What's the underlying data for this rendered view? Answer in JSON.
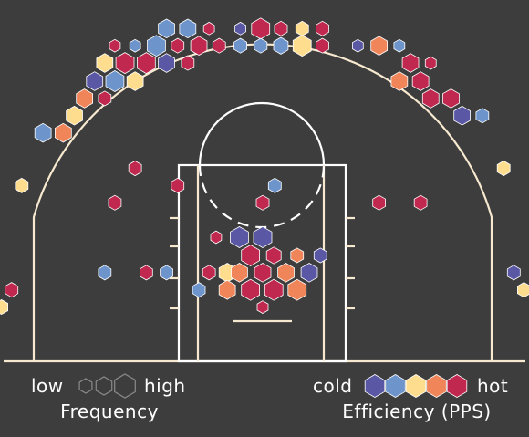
{
  "chart_data": {
    "type": "scatter",
    "subtype": "hexbin-shot-chart",
    "legend": {
      "frequency": {
        "low": "low",
        "high": "high",
        "title": "Frequency"
      },
      "efficiency": {
        "cold": "cold",
        "hot": "hot",
        "title": "Efficiency (PPS)"
      }
    },
    "color_scale": [
      "#5a58a5",
      "#6d95cc",
      "#fedd8e",
      "#f0855a",
      "#c0284f"
    ],
    "axes": {
      "x_range": [
        -25,
        25
      ],
      "y_range": [
        -4,
        30
      ],
      "units": "ft",
      "grid": false
    },
    "shots": [
      {
        "x": -9.5,
        "y": 28.8,
        "f": 0.9,
        "c": 1
      },
      {
        "x": -7.4,
        "y": 28.8,
        "f": 0.9,
        "c": 1
      },
      {
        "x": -5.3,
        "y": 28.8,
        "f": 0.6,
        "c": 4
      },
      {
        "x": -2.2,
        "y": 28.8,
        "f": 0.6,
        "c": 0
      },
      {
        "x": -0.2,
        "y": 28.8,
        "f": 1.0,
        "c": 4
      },
      {
        "x": 1.8,
        "y": 28.8,
        "f": 0.7,
        "c": 4
      },
      {
        "x": 3.9,
        "y": 28.8,
        "f": 0.7,
        "c": 2
      },
      {
        "x": 5.9,
        "y": 28.8,
        "f": 0.7,
        "c": 4
      },
      {
        "x": -14.6,
        "y": 27.1,
        "f": 0.6,
        "c": 4
      },
      {
        "x": -12.6,
        "y": 27.1,
        "f": 0.6,
        "c": 1
      },
      {
        "x": -10.5,
        "y": 27.1,
        "f": 1.0,
        "c": 1
      },
      {
        "x": -8.4,
        "y": 27.1,
        "f": 0.7,
        "c": 4
      },
      {
        "x": -6.3,
        "y": 27.1,
        "f": 0.9,
        "c": 4
      },
      {
        "x": -4.3,
        "y": 27.1,
        "f": 0.7,
        "c": 4
      },
      {
        "x": -2.2,
        "y": 27.1,
        "f": 0.7,
        "c": 1
      },
      {
        "x": -0.2,
        "y": 27.1,
        "f": 0.7,
        "c": 1
      },
      {
        "x": 1.8,
        "y": 27.1,
        "f": 0.8,
        "c": 1
      },
      {
        "x": 3.9,
        "y": 27.1,
        "f": 1.0,
        "c": 2
      },
      {
        "x": 5.9,
        "y": 27.1,
        "f": 0.7,
        "c": 4
      },
      {
        "x": 9.4,
        "y": 27.1,
        "f": 0.6,
        "c": 0
      },
      {
        "x": 11.5,
        "y": 27.1,
        "f": 0.9,
        "c": 3
      },
      {
        "x": 13.5,
        "y": 27.1,
        "f": 0.6,
        "c": 1
      },
      {
        "x": -15.6,
        "y": 25.4,
        "f": 0.9,
        "c": 2
      },
      {
        "x": -13.6,
        "y": 25.4,
        "f": 1.0,
        "c": 4
      },
      {
        "x": -11.5,
        "y": 25.4,
        "f": 1.0,
        "c": 4
      },
      {
        "x": -9.5,
        "y": 25.4,
        "f": 0.9,
        "c": 0
      },
      {
        "x": -7.4,
        "y": 25.4,
        "f": 0.7,
        "c": 4
      },
      {
        "x": 14.6,
        "y": 25.4,
        "f": 0.9,
        "c": 4
      },
      {
        "x": 16.6,
        "y": 25.4,
        "f": 0.6,
        "c": 4
      },
      {
        "x": -16.6,
        "y": 23.6,
        "f": 0.9,
        "c": 0
      },
      {
        "x": -14.6,
        "y": 23.6,
        "f": 1.0,
        "c": 1
      },
      {
        "x": -12.6,
        "y": 23.6,
        "f": 0.9,
        "c": 2
      },
      {
        "x": 13.5,
        "y": 23.6,
        "f": 0.9,
        "c": 3
      },
      {
        "x": 15.6,
        "y": 23.6,
        "f": 0.9,
        "c": 4
      },
      {
        "x": -17.6,
        "y": 21.9,
        "f": 0.9,
        "c": 3
      },
      {
        "x": -15.6,
        "y": 21.9,
        "f": 0.7,
        "c": 4
      },
      {
        "x": 16.6,
        "y": 21.9,
        "f": 0.9,
        "c": 4
      },
      {
        "x": 18.6,
        "y": 21.9,
        "f": 0.9,
        "c": 4
      },
      {
        "x": -18.6,
        "y": 20.2,
        "f": 0.9,
        "c": 2
      },
      {
        "x": 19.7,
        "y": 20.2,
        "f": 0.9,
        "c": 0
      },
      {
        "x": 21.7,
        "y": 20.2,
        "f": 0.7,
        "c": 1
      },
      {
        "x": -21.7,
        "y": 18.5,
        "f": 0.9,
        "c": 1
      },
      {
        "x": -19.7,
        "y": 18.5,
        "f": 0.9,
        "c": 3
      },
      {
        "x": -12.6,
        "y": 15.0,
        "f": 0.7,
        "c": 4
      },
      {
        "x": 23.8,
        "y": 15.0,
        "f": 0.7,
        "c": 2
      },
      {
        "x": -8.4,
        "y": 13.3,
        "f": 0.7,
        "c": 4
      },
      {
        "x": -23.8,
        "y": 13.3,
        "f": 0.7,
        "c": 2
      },
      {
        "x": 1.2,
        "y": 13.3,
        "f": 0.7,
        "c": 1
      },
      {
        "x": -14.6,
        "y": 11.6,
        "f": 0.7,
        "c": 4
      },
      {
        "x": 0.0,
        "y": 11.6,
        "f": 0.7,
        "c": 4
      },
      {
        "x": 11.5,
        "y": 11.6,
        "f": 0.7,
        "c": 4
      },
      {
        "x": 15.6,
        "y": 11.6,
        "f": 0.7,
        "c": 4
      },
      {
        "x": -4.6,
        "y": 8.2,
        "f": 0.6,
        "c": 4
      },
      {
        "x": -2.3,
        "y": 8.2,
        "f": 1.0,
        "c": 0
      },
      {
        "x": 0.0,
        "y": 8.2,
        "f": 1.0,
        "c": 0
      },
      {
        "x": -1.2,
        "y": 6.4,
        "f": 1.0,
        "c": 4
      },
      {
        "x": 1.1,
        "y": 6.4,
        "f": 0.8,
        "c": 4
      },
      {
        "x": 3.4,
        "y": 6.4,
        "f": 0.7,
        "c": 3
      },
      {
        "x": 5.7,
        "y": 6.4,
        "f": 0.7,
        "c": 0
      },
      {
        "x": -15.6,
        "y": 4.7,
        "f": 0.7,
        "c": 1
      },
      {
        "x": -11.5,
        "y": 4.7,
        "f": 0.7,
        "c": 4
      },
      {
        "x": -9.5,
        "y": 4.7,
        "f": 0.7,
        "c": 1
      },
      {
        "x": -5.3,
        "y": 4.7,
        "f": 0.7,
        "c": 4
      },
      {
        "x": -3.5,
        "y": 4.7,
        "f": 0.9,
        "c": 2
      },
      {
        "x": -2.3,
        "y": 4.7,
        "f": 0.9,
        "c": 3
      },
      {
        "x": 0.0,
        "y": 4.7,
        "f": 0.9,
        "c": 4
      },
      {
        "x": 2.3,
        "y": 4.7,
        "f": 0.9,
        "c": 3
      },
      {
        "x": 4.6,
        "y": 4.7,
        "f": 0.9,
        "c": 0
      },
      {
        "x": 24.8,
        "y": 4.7,
        "f": 0.7,
        "c": 0
      },
      {
        "x": -3.5,
        "y": 3.0,
        "f": 0.9,
        "c": 3
      },
      {
        "x": -1.2,
        "y": 3.0,
        "f": 1.0,
        "c": 4
      },
      {
        "x": 1.1,
        "y": 3.0,
        "f": 1.0,
        "c": 4
      },
      {
        "x": 3.4,
        "y": 3.0,
        "f": 1.0,
        "c": 3
      },
      {
        "x": -6.3,
        "y": 3.0,
        "f": 0.7,
        "c": 1
      },
      {
        "x": -24.8,
        "y": 3.0,
        "f": 0.7,
        "c": 4
      },
      {
        "x": 25.8,
        "y": 3.0,
        "f": 0.7,
        "c": 2
      },
      {
        "x": -25.8,
        "y": 1.3,
        "f": 0.7,
        "c": 2
      },
      {
        "x": 0.0,
        "y": 1.3,
        "f": 0.6,
        "c": 4
      }
    ]
  }
}
